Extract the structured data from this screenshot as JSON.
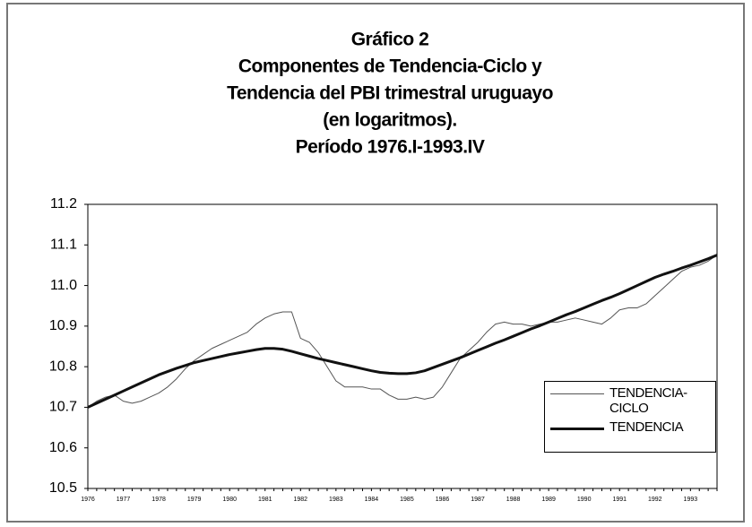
{
  "chart_data": {
    "type": "line",
    "title": [
      "Gráfico 2",
      "Componentes de Tendencia-Ciclo y",
      "Tendencia del PBI trimestral uruguayo",
      "(en logaritmos).",
      "Período 1976.I-1993.IV"
    ],
    "categories": [
      "1976",
      null,
      null,
      null,
      "1977",
      null,
      null,
      null,
      "1978",
      null,
      null,
      null,
      "1979",
      null,
      null,
      null,
      "1980",
      null,
      null,
      null,
      "1981",
      null,
      null,
      null,
      "1982",
      null,
      null,
      null,
      "1983",
      null,
      null,
      null,
      "1984",
      null,
      null,
      null,
      "1985",
      null,
      null,
      null,
      "1986",
      null,
      null,
      null,
      "1987",
      null,
      null,
      null,
      "1988",
      null,
      null,
      null,
      "1989",
      null,
      null,
      null,
      "1990",
      null,
      null,
      null,
      "1991",
      null,
      null,
      null,
      "1992",
      null,
      null,
      null,
      "1993",
      null,
      null,
      null
    ],
    "series": [
      {
        "name": "TENDENCIA-CICLO",
        "color": "#555555",
        "line_width": 1,
        "values": [
          10.7,
          10.715,
          10.725,
          10.73,
          10.715,
          10.71,
          10.715,
          10.725,
          10.735,
          10.75,
          10.77,
          10.795,
          10.815,
          10.83,
          10.845,
          10.855,
          10.865,
          10.875,
          10.885,
          10.905,
          10.92,
          10.93,
          10.935,
          10.935,
          10.87,
          10.86,
          10.835,
          10.8,
          10.765,
          10.75,
          10.75,
          10.75,
          10.745,
          10.745,
          10.73,
          10.72,
          10.72,
          10.725,
          10.72,
          10.725,
          10.75,
          10.785,
          10.82,
          10.84,
          10.86,
          10.885,
          10.905,
          10.91,
          10.905,
          10.905,
          10.9,
          10.905,
          10.91,
          10.91,
          10.915,
          10.92,
          10.915,
          10.91,
          10.905,
          10.92,
          10.94,
          10.945,
          10.945,
          10.955,
          10.975,
          10.995,
          11.015,
          11.035,
          11.045,
          11.05,
          11.06,
          11.075
        ]
      },
      {
        "name": "TENDENCIA",
        "color": "#111111",
        "line_width": 3,
        "values": [
          10.7,
          10.71,
          10.72,
          10.73,
          10.74,
          10.75,
          10.76,
          10.77,
          10.78,
          10.788,
          10.796,
          10.803,
          10.81,
          10.815,
          10.82,
          10.825,
          10.83,
          10.834,
          10.838,
          10.842,
          10.845,
          10.845,
          10.843,
          10.838,
          10.832,
          10.826,
          10.82,
          10.815,
          10.81,
          10.805,
          10.8,
          10.795,
          10.79,
          10.786,
          10.784,
          10.783,
          10.783,
          10.785,
          10.79,
          10.798,
          10.806,
          10.814,
          10.822,
          10.831,
          10.84,
          10.849,
          10.858,
          10.866,
          10.875,
          10.884,
          10.893,
          10.901,
          10.91,
          10.919,
          10.928,
          10.936,
          10.945,
          10.954,
          10.963,
          10.971,
          10.98,
          10.99,
          11.0,
          11.01,
          11.02,
          11.028,
          11.035,
          11.043,
          11.05,
          11.058,
          11.066,
          11.075
        ]
      }
    ],
    "ylim": [
      10.5,
      11.2
    ],
    "yticks": [
      10.5,
      10.6,
      10.7,
      10.8,
      10.9,
      {
        "value": 11.0,
        "label": "11.0"
      },
      11.1,
      11.2
    ],
    "grid": false,
    "legend": "lower right"
  }
}
